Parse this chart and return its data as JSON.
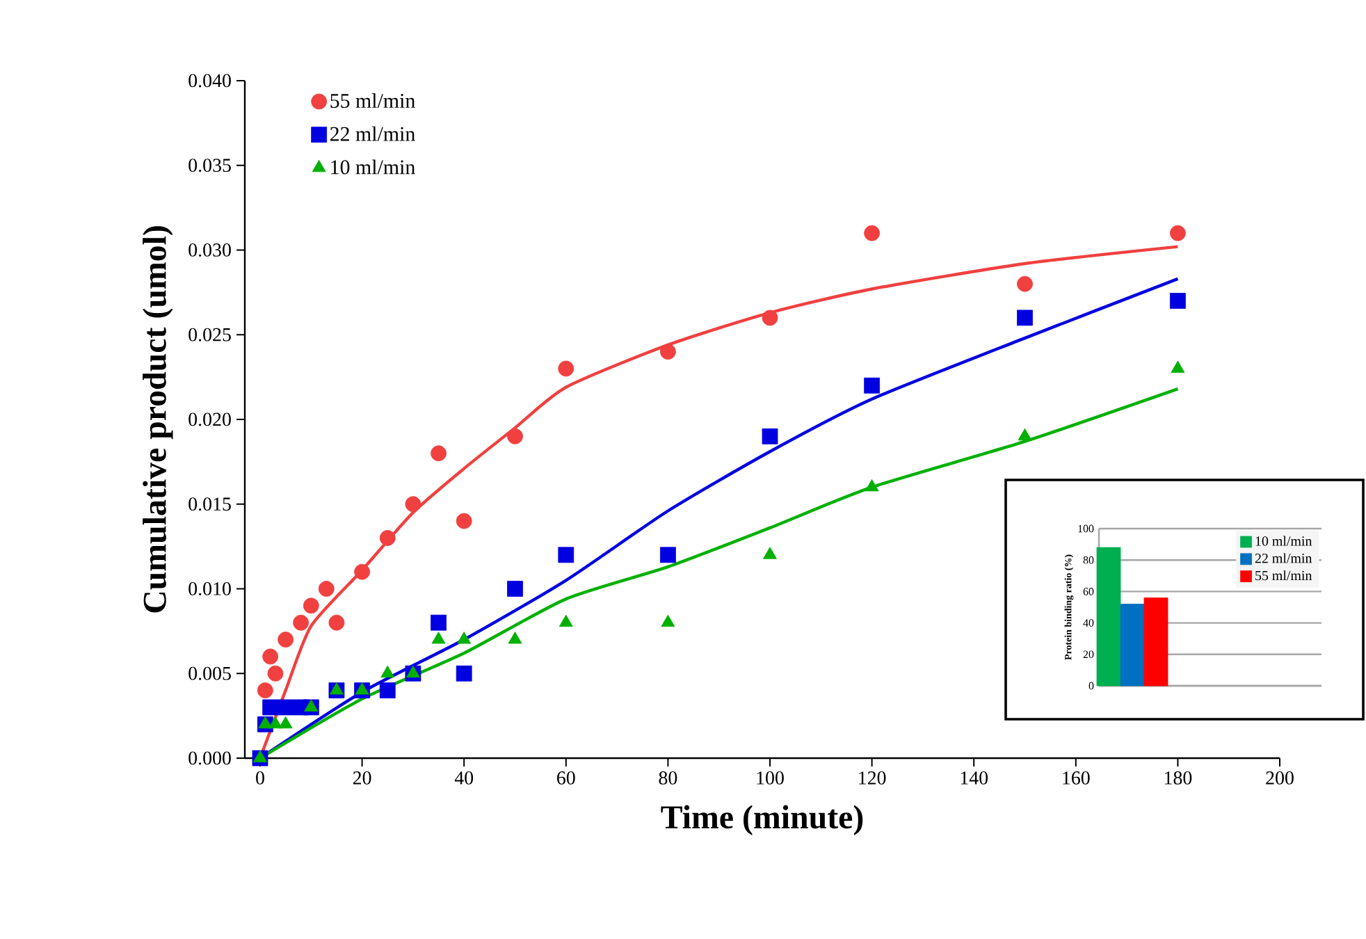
{
  "chart_data": [
    {
      "type": "scatter",
      "xlabel": "Time (minute)",
      "ylabel": "Cumulative product (umol)",
      "xlim": [
        -3,
        200
      ],
      "ylim": [
        0,
        0.04
      ],
      "xticks": [
        0,
        20,
        40,
        60,
        80,
        100,
        120,
        140,
        160,
        180,
        200
      ],
      "yticks": [
        {
          "value": 0,
          "label": "0.000"
        },
        {
          "value": 0.005,
          "label": "0.005"
        },
        {
          "value": 0.01,
          "label": "0.010"
        },
        {
          "value": 0.015,
          "label": "0.015"
        },
        {
          "value": 0.02,
          "label": "0.020"
        },
        {
          "value": 0.025,
          "label": "0.025"
        },
        {
          "value": 0.03,
          "label": "0.030"
        },
        {
          "value": 0.035,
          "label": "0.035"
        },
        {
          "value": 0.04,
          "label": "0.040"
        }
      ],
      "legend": "top left",
      "series": [
        {
          "name": "55 ml/min",
          "type": "scatter",
          "marker": "circle",
          "color": "#f04040",
          "x": [
            1,
            2,
            3,
            5,
            8,
            10,
            13,
            15,
            20,
            25,
            30,
            35,
            40,
            50,
            60,
            80,
            100,
            120,
            150,
            180
          ],
          "values": [
            0.004,
            0.006,
            0.005,
            0.007,
            0.008,
            0.009,
            0.01,
            0.008,
            0.011,
            0.013,
            0.015,
            0.018,
            0.014,
            0.019,
            0.023,
            0.024,
            0.026,
            0.031,
            0.028,
            0.031
          ]
        },
        {
          "name": "22 ml/min",
          "type": "scatter",
          "marker": "square",
          "color": "#0000e0",
          "x": [
            0,
            1,
            2,
            5,
            8,
            10,
            15,
            20,
            25,
            30,
            35,
            40,
            50,
            60,
            80,
            100,
            120,
            150,
            180
          ],
          "values": [
            0,
            0.002,
            0.003,
            0.003,
            0.003,
            0.003,
            0.004,
            0.004,
            0.004,
            0.005,
            0.008,
            0.005,
            0.01,
            0.012,
            0.012,
            0.019,
            0.022,
            0.026,
            0.027
          ]
        },
        {
          "name": "10 ml/min",
          "type": "scatter",
          "marker": "triangle",
          "color": "#00b000",
          "x": [
            0,
            1,
            3,
            5,
            10,
            15,
            20,
            25,
            30,
            35,
            40,
            50,
            60,
            80,
            100,
            120,
            150,
            180
          ],
          "values": [
            0,
            0.002,
            0.002,
            0.002,
            0.003,
            0.004,
            0.004,
            0.005,
            0.005,
            0.007,
            0.007,
            0.007,
            0.008,
            0.008,
            0.012,
            0.016,
            0.019,
            0.023
          ]
        },
        {
          "type": "line",
          "marker": "none",
          "color": "#f04040",
          "x": [
            0,
            5,
            10,
            20,
            30,
            40,
            50,
            60,
            80,
            100,
            120,
            150,
            180
          ],
          "values": [
            0,
            0.004,
            0.0078,
            0.0111,
            0.0145,
            0.0171,
            0.0195,
            0.0219,
            0.0244,
            0.0263,
            0.0277,
            0.0292,
            0.0302
          ]
        },
        {
          "type": "line",
          "marker": "none",
          "color": "#0000e0",
          "x": [
            0,
            20,
            40,
            60,
            80,
            100,
            120,
            150,
            180
          ],
          "values": [
            0,
            0.0039,
            0.007,
            0.0105,
            0.0146,
            0.0181,
            0.0212,
            0.0248,
            0.0283
          ]
        },
        {
          "type": "line",
          "marker": "none",
          "color": "#00b000",
          "x": [
            0,
            20,
            40,
            60,
            80,
            100,
            120,
            150,
            180
          ],
          "values": [
            0,
            0.0035,
            0.0062,
            0.0094,
            0.0113,
            0.0136,
            0.016,
            0.0187,
            0.0218
          ]
        }
      ]
    },
    {
      "type": "bar",
      "ylabel": "Protein binding ratio (%)",
      "categories": [
        null
      ],
      "ylim": [
        0,
        100
      ],
      "yticks": [
        0,
        20,
        40,
        60,
        80,
        100
      ],
      "grid": "y",
      "legend": "top right",
      "series": [
        {
          "name": "10 ml/min",
          "color": "#00b050",
          "values": [
            88
          ]
        },
        {
          "name": "22 ml/min",
          "color": "#0070c0",
          "values": [
            52
          ]
        },
        {
          "name": "55 ml/min",
          "color": "#ff0000",
          "values": [
            56
          ]
        }
      ]
    }
  ]
}
